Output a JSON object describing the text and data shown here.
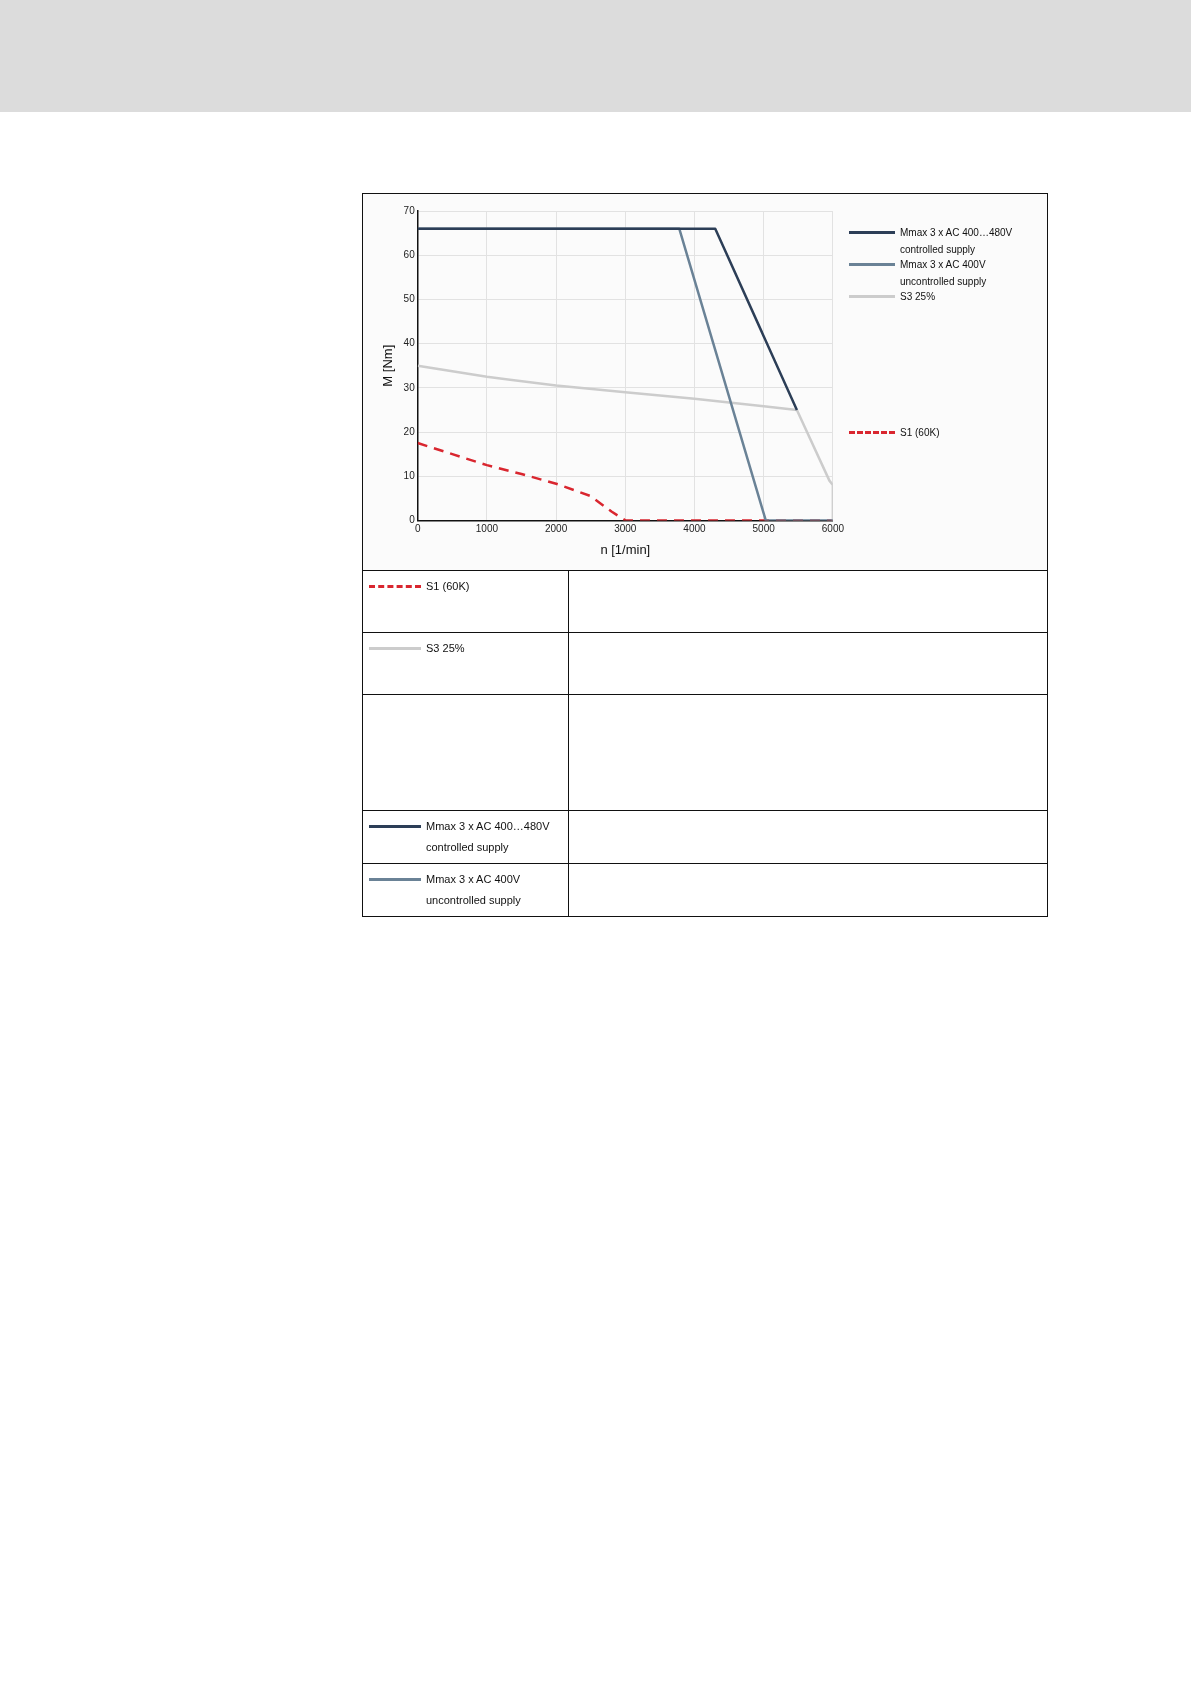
{
  "chart_data": {
    "type": "line",
    "xlabel": "n [1/min]",
    "ylabel": "M [Nm]",
    "xlim": [
      0,
      6000
    ],
    "xticks": [
      0,
      1000,
      2000,
      3000,
      4000,
      5000,
      6000
    ],
    "ylim": [
      0,
      70
    ],
    "yticks": [
      0,
      10,
      20,
      30,
      40,
      50,
      60,
      70
    ],
    "grid": true,
    "legend": "right",
    "marker": "none",
    "series": [
      {
        "name": "Mmax 3 x AC 400…480V\ncontrolled supply",
        "color": "#2c3e57",
        "x": [
          0,
          4300,
          5480
        ],
        "values": [
          66,
          66,
          25
        ]
      },
      {
        "name": "Mmax 3 x AC 400V\nuncontrolled supply",
        "color": "#6a8296",
        "x": [
          0,
          3780,
          5030,
          6000
        ],
        "values": [
          66,
          66,
          0,
          0
        ]
      },
      {
        "name": "S3 25%",
        "color": "#cccccc",
        "x": [
          0,
          1000,
          2000,
          3000,
          4000,
          5000,
          5480,
          5950,
          6000,
          6000
        ],
        "values": [
          35,
          32.5,
          30.5,
          29,
          27.5,
          25.8,
          25,
          9,
          8,
          0
        ]
      },
      {
        "name": "S1 (60K)",
        "color": "#d9262f",
        "line_style": "dashed",
        "x": [
          0,
          500,
          1000,
          1500,
          2000,
          2500,
          2800,
          3000,
          6000
        ],
        "values": [
          17.5,
          15,
          12.5,
          10.5,
          8.3,
          5.5,
          2,
          0,
          0
        ]
      }
    ]
  }
}
